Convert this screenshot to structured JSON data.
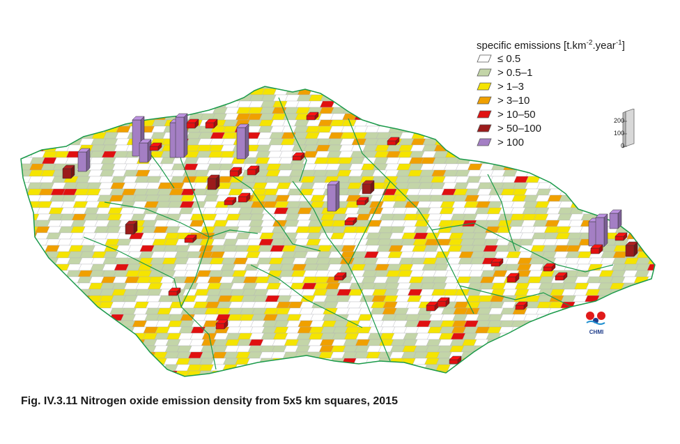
{
  "legend": {
    "title_prefix": "specific emissions [t.km",
    "title_exp1": "-2",
    "title_mid": ".year",
    "title_exp2": "-1",
    "title_suffix": "]",
    "items": [
      {
        "label": "≤ 0.5",
        "color": "#ffffff"
      },
      {
        "label": "> 0.5–1",
        "color": "#c3d5a8"
      },
      {
        "label": "> 1–3",
        "color": "#f5e400"
      },
      {
        "label": "> 3–10",
        "color": "#f0a000"
      },
      {
        "label": "> 10–50",
        "color": "#e01010"
      },
      {
        "label": "> 50–100",
        "color": "#9b1b1b"
      },
      {
        "label": "> 100",
        "color": "#a47fc4"
      }
    ]
  },
  "scale_bar": {
    "ticks": [
      "200",
      "100",
      "0"
    ]
  },
  "logo": {
    "text": "CHMI"
  },
  "caption": "Fig. IV.3.11  Nitrogen oxide emission density from 5x5 km squares, 2015",
  "colors": {
    "border": "#1a9a4a",
    "grid": "#b0b0b8"
  }
}
